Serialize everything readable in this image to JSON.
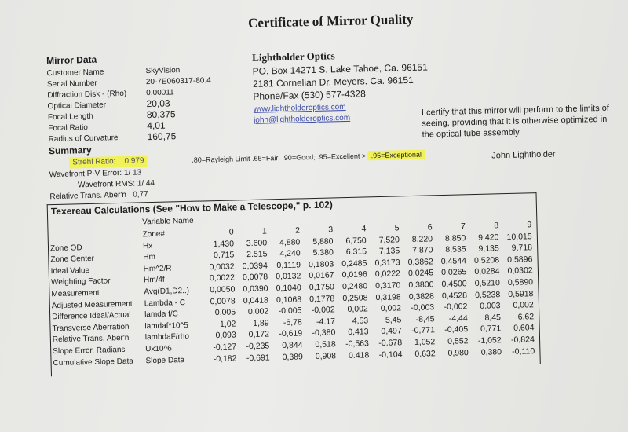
{
  "title": "Certificate of Mirror Quality",
  "company": {
    "name": "Lightholder Optics",
    "address1": "PO. Box 14271 S. Lake Tahoe, Ca. 96151",
    "address2": "2181 Cornelian Dr. Meyers. Ca. 96151",
    "phone": "Phone/Fax (530) 577-4328",
    "website": "www.lightholderoptics.com",
    "email": "john@lightholderoptics.com"
  },
  "certification": "I certify that this mirror will perform to the limits of seeing, providing that it is otherwise optimized in the optical tube assembly.",
  "signature": "John Lightholder",
  "mirror_data": {
    "heading": "Mirror Data",
    "fields": [
      {
        "label": "Customer Name",
        "value": "SkyVision"
      },
      {
        "label": "Serial Number",
        "value": "20-7E060317-80.4"
      },
      {
        "label": "Diffraction Disk - (Rho)",
        "value": "0,00011"
      },
      {
        "label": "Optical Diameter",
        "value": "20,03"
      },
      {
        "label": "Focal Length",
        "value": "80,375"
      },
      {
        "label": "Focal Ratio",
        "value": "4,01"
      },
      {
        "label": "Radius of Curvature",
        "value": "160,75"
      }
    ]
  },
  "summary": {
    "heading": "Summary",
    "strehl_label": "Strehl Ratio:",
    "strehl_value": "0,979",
    "scale": ".80=Rayleigh Limit .65=Fair; .90=Good; .95=Excellent >",
    "scale_highlight": ".95=Exceptional",
    "pv_label": "Wavefront P-V Error:",
    "pv_value": "1/ 13",
    "rms_label": "Wavefront RMS:",
    "rms_value": "1/ 44",
    "rta_label": "Relative Trans. Aber'n",
    "rta_value": "0,77",
    "highlight_color": "#f1f25a"
  },
  "texereau": {
    "title": "Texereau Calculations (See \"How to Make a Telescope,\" p. 102)",
    "variable_header": "Variable Name",
    "rows": [
      {
        "label": "",
        "var": "Zone#",
        "values": [
          "0",
          "1",
          "2",
          "3",
          "4",
          "5",
          "6",
          "7",
          "8",
          "9"
        ]
      },
      {
        "label": "Zone OD",
        "var": "Hx",
        "values": [
          "1,430",
          "3.600",
          "4,880",
          "5,880",
          "6,750",
          "7,520",
          "8,220",
          "8,850",
          "9,420",
          "10,015"
        ]
      },
      {
        "label": "Zone Center",
        "var": "Hm",
        "values": [
          "0,715",
          "2.515",
          "4,240",
          "5.380",
          "6.315",
          "7,135",
          "7,870",
          "8,535",
          "9,135",
          "9,718"
        ]
      },
      {
        "label": "Ideal Value",
        "var": "Hm^2/R",
        "values": [
          "0,0032",
          "0,0394",
          "0,1119",
          "0,1803",
          "0,2485",
          "0,3173",
          "0,3862",
          "0,4544",
          "0,5208",
          "0,5896"
        ]
      },
      {
        "label": "Weighting Factor",
        "var": "Hm/4f",
        "values": [
          "0,0022",
          "0,0078",
          "0,0132",
          "0,0167",
          "0,0196",
          "0,0222",
          "0,0245",
          "0,0265",
          "0,0284",
          "0,0302"
        ]
      },
      {
        "label": "Measurement",
        "var": "Avg(D1,D2..)",
        "values": [
          "0,0050",
          "0,0390",
          "0,1040",
          "0,1750",
          "0,2480",
          "0,3170",
          "0,3800",
          "0,4500",
          "0,5210",
          "0,5890"
        ]
      },
      {
        "label": "Adjusted Measurement",
        "var": "Lambda - C",
        "values": [
          "0,0078",
          "0,0418",
          "0,1068",
          "0,1778",
          "0,2508",
          "0,3198",
          "0,3828",
          "0,4528",
          "0,5238",
          "0,5918"
        ]
      },
      {
        "label": "Difference Ideal/Actual",
        "var": "lamda f/C",
        "values": [
          "0,005",
          "0,002",
          "-0,005",
          "-0,002",
          "0,002",
          "0,002",
          "-0,003",
          "-0,002",
          "0,003",
          "0,002"
        ]
      },
      {
        "label": "Transverse Aberration",
        "var": "lamdaf*10^5",
        "values": [
          "1,02",
          "1,89",
          "-6,78",
          "-4.17",
          "4,53",
          "5,45",
          "-8,45",
          "-4,44",
          "8,45",
          "6,62"
        ]
      },
      {
        "label": "Relative Trans. Aber'n",
        "var": "lambdaF/rho",
        "values": [
          "0,093",
          "0,172",
          "-0,619",
          "-0,380",
          "0,413",
          "0,497",
          "-0,771",
          "-0,405",
          "0,771",
          "0,604"
        ]
      },
      {
        "label": "Slope Error, Radians",
        "var": "Ux10^6",
        "values": [
          "-0,127",
          "-0,235",
          "0,844",
          "0,518",
          "-0,563",
          "-0,678",
          "1,052",
          "0,552",
          "-1,052",
          "-0,824"
        ]
      },
      {
        "label": "Cumulative Slope Data",
        "var": "Slope Data",
        "values": [
          "-0,182",
          "-0,691",
          "0,389",
          "0,908",
          "0.418",
          "-0,104",
          "0,632",
          "0,980",
          "0,380",
          "-0,110"
        ]
      }
    ]
  }
}
